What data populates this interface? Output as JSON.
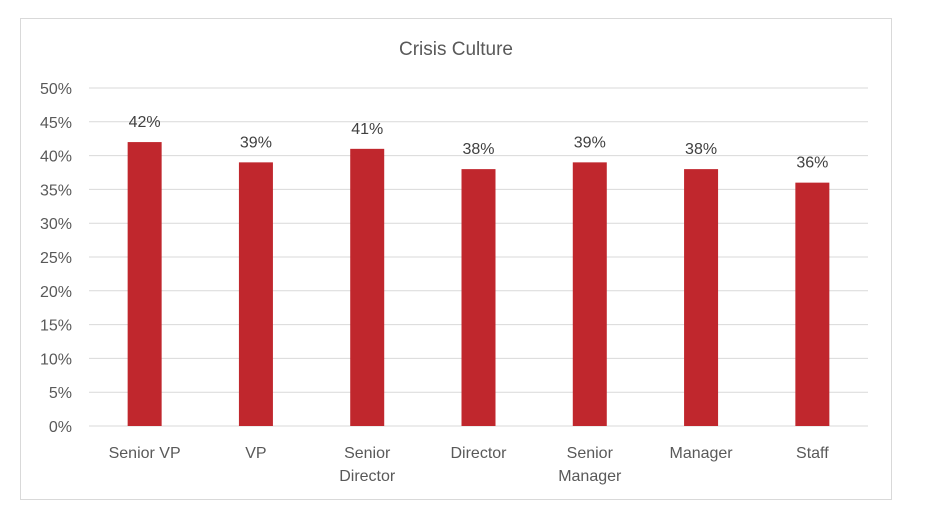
{
  "chart_data": {
    "type": "bar",
    "title": "Crisis Culture",
    "categories": [
      [
        "Senior VP"
      ],
      [
        "VP"
      ],
      [
        "Senior",
        "Director"
      ],
      [
        "Director"
      ],
      [
        "Senior",
        "Manager"
      ],
      [
        "Manager"
      ],
      [
        "Staff"
      ]
    ],
    "values": [
      42,
      39,
      41,
      38,
      39,
      38,
      36
    ],
    "value_labels": [
      "42%",
      "39%",
      "41%",
      "38%",
      "39%",
      "38%",
      "36%"
    ],
    "ylim": [
      0,
      50
    ],
    "yticks": [
      0,
      5,
      10,
      15,
      20,
      25,
      30,
      35,
      40,
      45,
      50
    ],
    "ytick_labels": [
      "0%",
      "5%",
      "10%",
      "15%",
      "20%",
      "25%",
      "30%",
      "35%",
      "40%",
      "45%",
      "50%"
    ],
    "grid": true,
    "legend": "none",
    "bar_color": "#c0272d",
    "grid_color": "#d9d9d9"
  }
}
